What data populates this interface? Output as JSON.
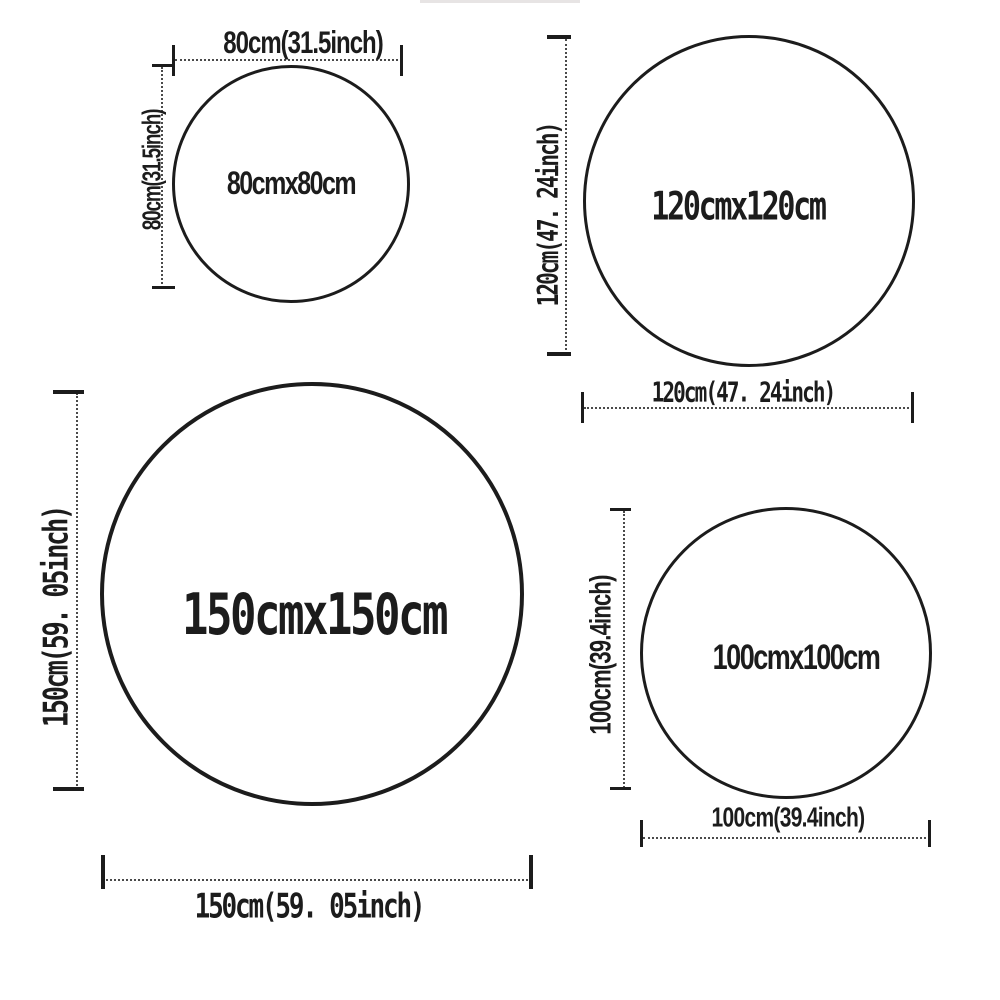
{
  "diagram": {
    "colors": {
      "line": "#1c1c1c",
      "dotted_line": "#4a4a4a",
      "background": "#ffffff"
    },
    "sizes": [
      {
        "name": "80cm",
        "center_label": "80cmx80cm",
        "width_label": "80cm(31.5inch)",
        "height_label": "80cm(31.5inch)"
      },
      {
        "name": "120cm",
        "center_label": "120cmx120cm",
        "width_label": "120cm(47. 24inch)",
        "height_label": "120cm(47. 24inch)"
      },
      {
        "name": "150cm",
        "center_label": "150cmx150cm",
        "width_label": "150cm(59. 05inch)",
        "height_label": "150cm(59. 05inch)"
      },
      {
        "name": "100cm",
        "center_label": "100cmx100cm",
        "width_label": "100cm(39.4inch)",
        "height_label": "100cm(39.4inch)"
      }
    ]
  }
}
